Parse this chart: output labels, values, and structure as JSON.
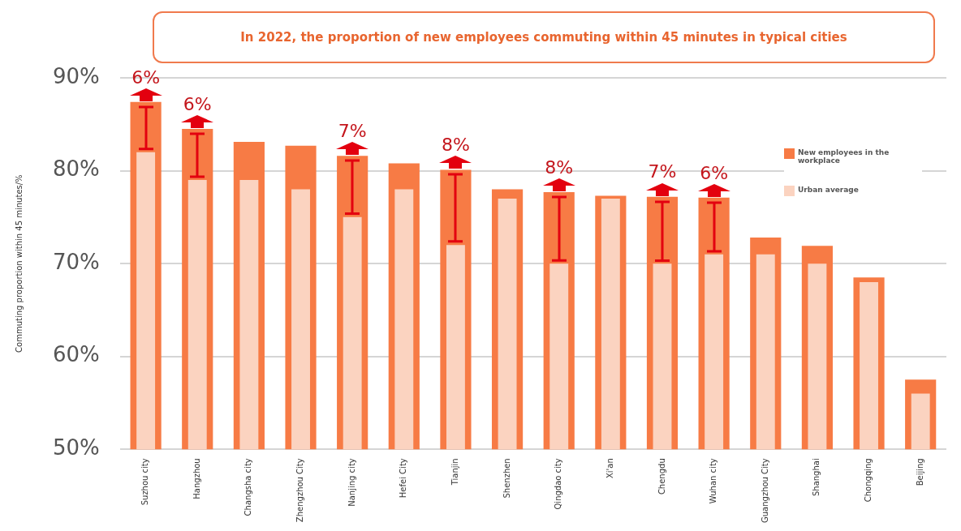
{
  "chart_data": {
    "type": "bar",
    "title": "In 2022, the proportion of new employees commuting within 45 minutes in typical cities",
    "ylabel": "Commuting proportion within 45 minutes/%",
    "categories": [
      "Suzhou city",
      "Hangzhou",
      "Changsha city",
      "Zhengzhou City",
      "Nanjing city",
      "Hefei City",
      "Tianjin",
      "Shenzhen",
      "Qingdao city",
      "Xi'an",
      "Chengdu",
      "Wuhan city",
      "Guangzhou City",
      "Shanghai",
      "Chongqing",
      "Beijing"
    ],
    "series": [
      {
        "name": "New employees in the workplace",
        "color": "#f77b45",
        "values": [
          87.4,
          84.5,
          83.1,
          82.7,
          81.6,
          80.8,
          80.1,
          78,
          77.7,
          77.3,
          77.2,
          77.1,
          72.8,
          71.9,
          68.5,
          57.5
        ]
      },
      {
        "name": "Urban average",
        "color": "#fbd3c0",
        "values": [
          82,
          79,
          79,
          78,
          75,
          78,
          72,
          77,
          70,
          77,
          70,
          71,
          71,
          70,
          68,
          56
        ]
      }
    ],
    "ylim": [
      50,
      90
    ],
    "yticks": [
      {
        "value": 50,
        "label": "50%"
      },
      {
        "value": 60,
        "label": "60%"
      },
      {
        "value": 70,
        "label": "70%"
      },
      {
        "value": 80,
        "label": "80%"
      },
      {
        "value": 90,
        "label": "90%"
      }
    ],
    "grid": "y",
    "legend": "top right",
    "annotations": [
      {
        "text": "6%",
        "x": "Suzhou city",
        "y": 87.4
      },
      {
        "text": "6%",
        "x": "Hangzhou",
        "y": 84.5
      },
      {
        "text": "7%",
        "x": "Nanjing city",
        "y": 81.6
      },
      {
        "text": "8%",
        "x": "Tianjin",
        "y": 80.1
      },
      {
        "text": "8%",
        "x": "Qingdao city",
        "y": 77.7
      },
      {
        "text": "7%",
        "x": "Chengdu",
        "y": 77.2
      },
      {
        "text": "6%",
        "x": "Wuhan city",
        "y": 77.1
      }
    ]
  }
}
